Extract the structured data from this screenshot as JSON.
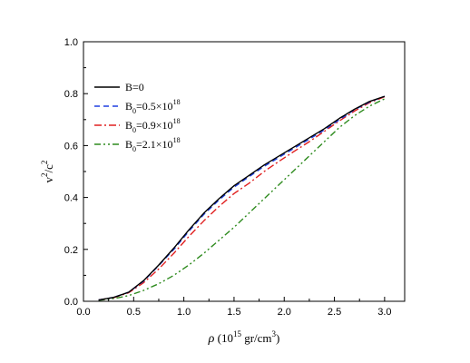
{
  "chart_data": {
    "type": "line",
    "title": "",
    "xlabel": "ρ (10¹⁵ gr/cm³)",
    "xlabel_parts": {
      "symbol": "ρ",
      "open": " (10",
      "exp": "15",
      "mid": " gr/cm",
      "exp2": "3",
      "close": ")"
    },
    "ylabel": "v²/c²",
    "ylabel_parts": {
      "v": "v",
      "exp": "2",
      "slash": "/c",
      "exp2": "2"
    },
    "xlim": [
      0.0,
      3.2
    ],
    "ylim": [
      0.0,
      1.0
    ],
    "xticks": [
      "0.0",
      "0.5",
      "1.0",
      "1.5",
      "2.0",
      "2.5",
      "3.0"
    ],
    "yticks": [
      "0.0",
      "0.2",
      "0.4",
      "0.6",
      "0.8",
      "1.0"
    ],
    "grid": false,
    "legend_position": "upper-left",
    "series": [
      {
        "name": "B=0",
        "legend_parts": {
          "main": "B=0",
          "sub": "",
          "rest": "",
          "sup": ""
        },
        "color": "#000000",
        "style": "solid",
        "x": [
          0.15,
          0.3,
          0.45,
          0.6,
          0.75,
          0.9,
          1.05,
          1.2,
          1.35,
          1.5,
          1.65,
          1.8,
          1.95,
          2.1,
          2.25,
          2.4,
          2.55,
          2.7,
          2.85,
          3.0
        ],
        "y": [
          0.005,
          0.015,
          0.035,
          0.08,
          0.14,
          0.205,
          0.275,
          0.34,
          0.395,
          0.445,
          0.485,
          0.525,
          0.56,
          0.595,
          0.63,
          0.665,
          0.705,
          0.74,
          0.77,
          0.79
        ]
      },
      {
        "name": "B0=0.5×1018",
        "legend_parts": {
          "main": "B",
          "sub": "0",
          "rest": "=0.5×10",
          "sup": "18"
        },
        "color": "#1f3fe0",
        "style": "dashed",
        "x": [
          0.15,
          0.3,
          0.45,
          0.6,
          0.75,
          0.9,
          1.05,
          1.2,
          1.35,
          1.5,
          1.65,
          1.8,
          1.95,
          2.1,
          2.25,
          2.4,
          2.55,
          2.7,
          2.85,
          3.0
        ],
        "y": [
          0.005,
          0.015,
          0.035,
          0.078,
          0.138,
          0.2,
          0.27,
          0.335,
          0.39,
          0.44,
          0.48,
          0.52,
          0.555,
          0.59,
          0.625,
          0.66,
          0.7,
          0.738,
          0.768,
          0.79
        ]
      },
      {
        "name": "B0=0.9×1018",
        "legend_parts": {
          "main": "B",
          "sub": "0",
          "rest": "=0.9×10",
          "sup": "18"
        },
        "color": "#e02020",
        "style": "dashdot",
        "x": [
          0.15,
          0.3,
          0.45,
          0.6,
          0.75,
          0.9,
          1.05,
          1.2,
          1.35,
          1.5,
          1.65,
          1.8,
          1.95,
          2.1,
          2.25,
          2.4,
          2.55,
          2.7,
          2.85,
          3.0
        ],
        "y": [
          0.005,
          0.014,
          0.033,
          0.072,
          0.125,
          0.185,
          0.25,
          0.31,
          0.365,
          0.415,
          0.455,
          0.5,
          0.54,
          0.578,
          0.615,
          0.655,
          0.695,
          0.733,
          0.765,
          0.788
        ]
      },
      {
        "name": "B0=2.1×1018",
        "legend_parts": {
          "main": "B",
          "sub": "0",
          "rest": "=2.1×10",
          "sup": "18"
        },
        "color": "#2e8b1e",
        "style": "dashdotdot",
        "x": [
          0.15,
          0.3,
          0.45,
          0.6,
          0.75,
          0.9,
          1.05,
          1.2,
          1.35,
          1.5,
          1.65,
          1.8,
          1.95,
          2.1,
          2.25,
          2.4,
          2.55,
          2.7,
          2.85,
          3.0
        ],
        "y": [
          0.004,
          0.01,
          0.022,
          0.042,
          0.068,
          0.1,
          0.14,
          0.185,
          0.235,
          0.285,
          0.34,
          0.395,
          0.45,
          0.505,
          0.56,
          0.615,
          0.67,
          0.715,
          0.752,
          0.78
        ]
      }
    ]
  }
}
